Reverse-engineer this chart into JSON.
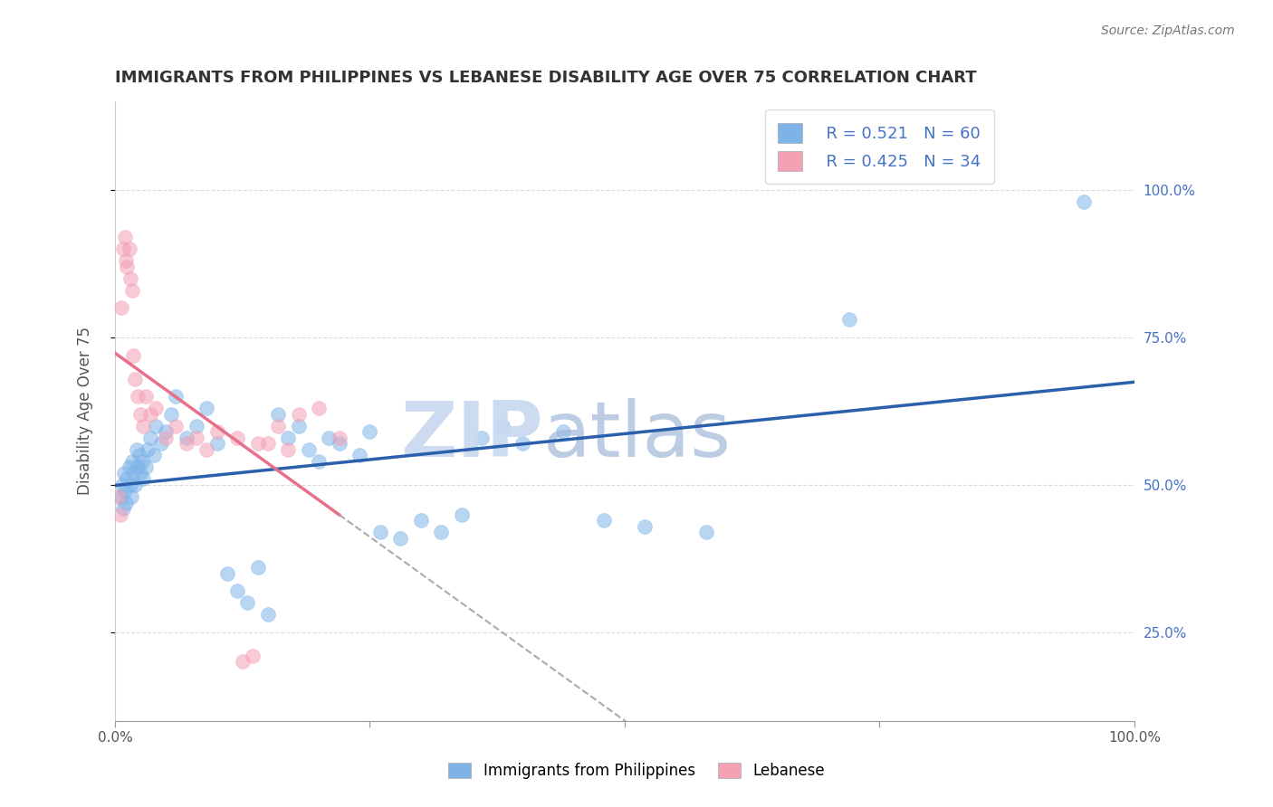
{
  "title": "IMMIGRANTS FROM PHILIPPINES VS LEBANESE DISABILITY AGE OVER 75 CORRELATION CHART",
  "source": "Source: ZipAtlas.com",
  "ylabel": "Disability Age Over 75",
  "y_right_ticks": [
    "25.0%",
    "50.0%",
    "75.0%",
    "100.0%"
  ],
  "legend_blue_r": "R = 0.521",
  "legend_blue_n": "N = 60",
  "legend_pink_r": "R = 0.425",
  "legend_pink_n": "N = 34",
  "legend_blue_label": "Immigrants from Philippines",
  "legend_pink_label": "Lebanese",
  "blue_color": "#7EB3E8",
  "pink_color": "#F4A0B5",
  "blue_line_color": "#2B5FAB",
  "pink_line_color": "#E8708A",
  "watermark_zip": "ZIP",
  "watermark_atlas": "atlas",
  "watermark_color_zip": "#C8D8F0",
  "watermark_color_atlas": "#A0B8D8",
  "title_color": "#333333",
  "axis_label_color": "#555555",
  "right_tick_color": "#4472C4",
  "philippines_x": [
    0.5,
    0.7,
    0.8,
    0.9,
    1.0,
    1.1,
    1.2,
    1.4,
    1.5,
    1.6,
    1.7,
    1.8,
    2.0,
    2.1,
    2.2,
    2.4,
    2.5,
    2.7,
    2.8,
    3.0,
    3.2,
    3.5,
    3.8,
    4.0,
    4.5,
    5.0,
    5.5,
    6.0,
    7.0,
    8.0,
    9.0,
    10.0,
    11.0,
    12.0,
    13.0,
    14.0,
    15.0,
    16.0,
    17.0,
    18.0,
    19.0,
    20.0,
    21.0,
    22.0,
    24.0,
    25.0,
    26.0,
    28.0,
    30.0,
    32.0,
    34.0,
    36.0,
    38.0,
    40.0,
    44.0,
    48.0,
    52.0,
    58.0,
    72.0,
    95.0
  ],
  "philippines_y": [
    48.0,
    50.0,
    46.0,
    52.0,
    49.0,
    47.0,
    51.0,
    53.0,
    50.0,
    48.0,
    54.0,
    52.0,
    50.0,
    56.0,
    53.0,
    55.0,
    52.0,
    54.0,
    51.0,
    53.0,
    56.0,
    58.0,
    55.0,
    60.0,
    57.0,
    59.0,
    62.0,
    65.0,
    58.0,
    60.0,
    63.0,
    57.0,
    35.0,
    32.0,
    30.0,
    36.0,
    28.0,
    62.0,
    58.0,
    60.0,
    56.0,
    54.0,
    58.0,
    57.0,
    55.0,
    59.0,
    42.0,
    41.0,
    44.0,
    42.0,
    45.0,
    58.0,
    60.0,
    57.0,
    59.0,
    44.0,
    43.0,
    42.0,
    78.0,
    98.0
  ],
  "lebanese_x": [
    0.3,
    0.5,
    0.6,
    0.8,
    1.0,
    1.1,
    1.2,
    1.4,
    1.5,
    1.7,
    1.8,
    2.0,
    2.2,
    2.5,
    2.8,
    3.0,
    3.5,
    4.0,
    5.0,
    6.0,
    7.0,
    8.0,
    9.0,
    10.0,
    12.0,
    14.0,
    16.0,
    18.0,
    20.0,
    22.0,
    12.5,
    13.5,
    15.0,
    17.0
  ],
  "lebanese_y": [
    48.0,
    45.0,
    80.0,
    90.0,
    92.0,
    88.0,
    87.0,
    90.0,
    85.0,
    83.0,
    72.0,
    68.0,
    65.0,
    62.0,
    60.0,
    65.0,
    62.0,
    63.0,
    58.0,
    60.0,
    57.0,
    58.0,
    56.0,
    59.0,
    58.0,
    57.0,
    60.0,
    62.0,
    63.0,
    58.0,
    20.0,
    21.0,
    57.0,
    56.0
  ]
}
